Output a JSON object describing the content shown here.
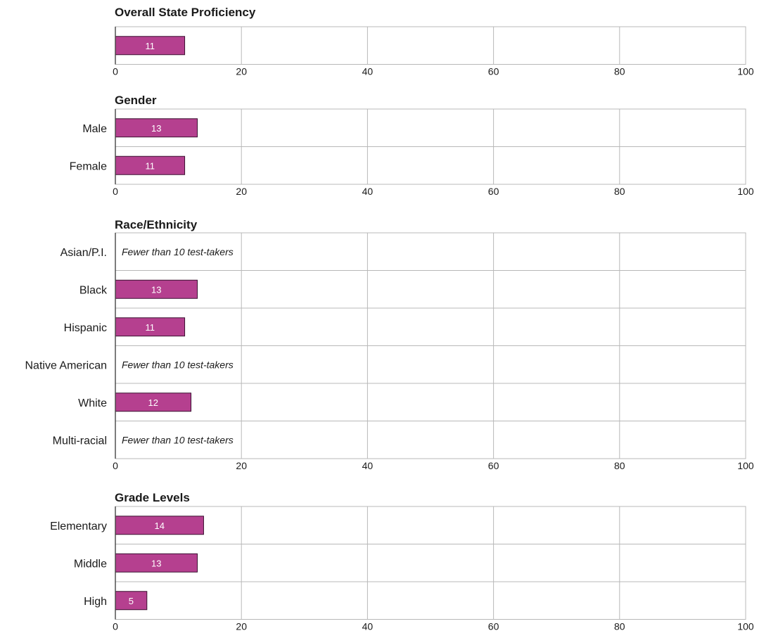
{
  "chart_data": [
    {
      "type": "bar",
      "orientation": "horizontal",
      "title": "Overall State Proficiency",
      "categories": [
        ""
      ],
      "values": [
        11
      ],
      "notes": [
        null
      ],
      "xlim": [
        0,
        100
      ],
      "ticks": [
        0,
        20,
        40,
        60,
        80,
        100
      ],
      "grid": true
    },
    {
      "type": "bar",
      "orientation": "horizontal",
      "title": "Gender",
      "categories": [
        "Male",
        "Female"
      ],
      "values": [
        13,
        11
      ],
      "notes": [
        null,
        null
      ],
      "xlim": [
        0,
        100
      ],
      "ticks": [
        0,
        20,
        40,
        60,
        80,
        100
      ],
      "grid": true
    },
    {
      "type": "bar",
      "orientation": "horizontal",
      "title": "Race/Ethnicity",
      "categories": [
        "Asian/P.I.",
        "Black",
        "Hispanic",
        "Native American",
        "White",
        "Multi-racial"
      ],
      "values": [
        null,
        13,
        11,
        null,
        12,
        null
      ],
      "notes": [
        "Fewer than 10 test-takers",
        null,
        null,
        "Fewer than 10 test-takers",
        null,
        "Fewer than 10 test-takers"
      ],
      "xlim": [
        0,
        100
      ],
      "ticks": [
        0,
        20,
        40,
        60,
        80,
        100
      ],
      "grid": true
    },
    {
      "type": "bar",
      "orientation": "horizontal",
      "title": "Grade Levels",
      "categories": [
        "Elementary",
        "Middle",
        "High"
      ],
      "values": [
        14,
        13,
        5
      ],
      "notes": [
        null,
        null,
        null
      ],
      "xlim": [
        0,
        100
      ],
      "ticks": [
        0,
        20,
        40,
        60,
        80,
        100
      ],
      "grid": true
    }
  ],
  "colors": {
    "bar_fill": "#b5408f",
    "bar_stroke": "#3a1030",
    "grid": "#b8b8b8",
    "axis": "#444444",
    "bar_label": "#ffffff"
  }
}
